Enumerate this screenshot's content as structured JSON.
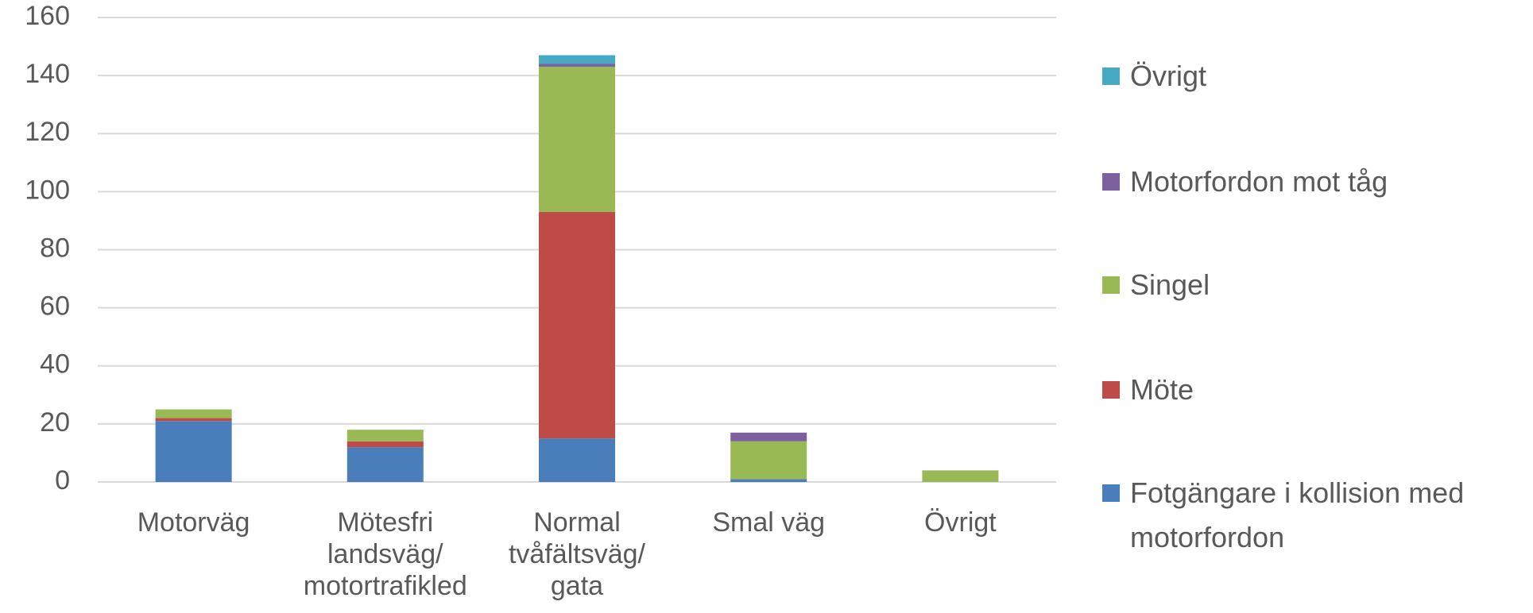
{
  "chart_data": {
    "type": "bar",
    "stacked": true,
    "categories": [
      "Motorväg",
      "Mötesfri landsväg/ motortrafikled",
      "Normal tvåfältsväg/ gata",
      "Smal väg",
      "Övrigt"
    ],
    "series": [
      {
        "name": "Fotgängare i kollision med motorfordon",
        "color": "#4a7ebb",
        "values": [
          21,
          12,
          15,
          1,
          0
        ]
      },
      {
        "name": "Möte",
        "color": "#be4b48",
        "values": [
          1,
          2,
          78,
          0,
          0
        ]
      },
      {
        "name": "Singel",
        "color": "#98b954",
        "values": [
          3,
          4,
          50,
          13,
          4
        ]
      },
      {
        "name": "Motorfordon mot tåg",
        "color": "#7d60a0",
        "values": [
          0,
          0,
          1,
          3,
          0
        ]
      },
      {
        "name": "Övrigt",
        "color": "#46aac5",
        "values": [
          0,
          0,
          3,
          0,
          0
        ]
      }
    ],
    "ylim": [
      0,
      160
    ],
    "yticks": [
      0,
      20,
      40,
      60,
      80,
      100,
      120,
      140,
      160
    ],
    "grid": true,
    "legend": "right"
  }
}
